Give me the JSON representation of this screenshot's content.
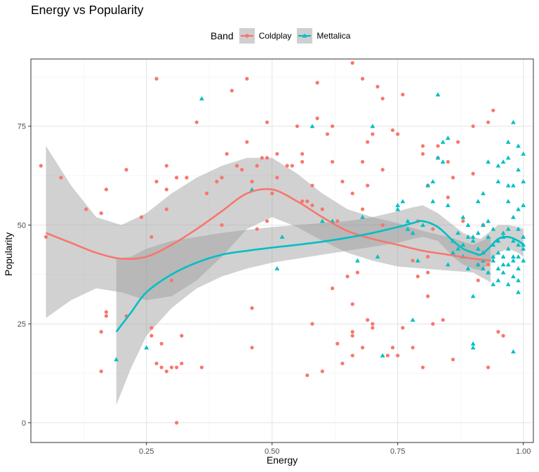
{
  "chart_data": {
    "type": "scatter",
    "title": "Energy vs Popularity",
    "xlabel": "Energy",
    "ylabel": "Popularity",
    "xlim": [
      0.02,
      1.02
    ],
    "ylim": [
      -5,
      92
    ],
    "x_ticks": [
      0.25,
      0.5,
      0.75,
      1.0
    ],
    "x_tick_labels": [
      "0.25",
      "0.50",
      "0.75",
      "1.00"
    ],
    "y_ticks": [
      0,
      25,
      50,
      75
    ],
    "y_tick_labels": [
      "0",
      "25",
      "50",
      "75"
    ],
    "grid": true,
    "legend": {
      "title": "Band",
      "position": "top",
      "items": [
        "Coldplay",
        "Mettalica"
      ]
    },
    "colors": {
      "Coldplay": "#F8766D",
      "Mettalica": "#00BFC4"
    },
    "series": [
      {
        "name": "Coldplay",
        "marker": "circle",
        "points": [
          [
            0.04,
            65
          ],
          [
            0.05,
            47
          ],
          [
            0.08,
            62
          ],
          [
            0.13,
            54
          ],
          [
            0.16,
            53
          ],
          [
            0.16,
            23
          ],
          [
            0.17,
            59
          ],
          [
            0.17,
            28
          ],
          [
            0.17,
            27
          ],
          [
            0.16,
            13
          ],
          [
            0.21,
            64
          ],
          [
            0.21,
            27
          ],
          [
            0.24,
            52
          ],
          [
            0.26,
            47
          ],
          [
            0.26,
            24
          ],
          [
            0.26,
            22
          ],
          [
            0.27,
            61
          ],
          [
            0.27,
            87
          ],
          [
            0.27,
            15
          ],
          [
            0.28,
            14
          ],
          [
            0.28,
            20
          ],
          [
            0.29,
            13
          ],
          [
            0.29,
            59
          ],
          [
            0.29,
            65
          ],
          [
            0.29,
            54
          ],
          [
            0.3,
            14
          ],
          [
            0.3,
            36
          ],
          [
            0.31,
            14
          ],
          [
            0.31,
            62
          ],
          [
            0.31,
            0
          ],
          [
            0.32,
            22
          ],
          [
            0.32,
            15
          ],
          [
            0.33,
            62
          ],
          [
            0.35,
            76
          ],
          [
            0.36,
            14
          ],
          [
            0.37,
            58
          ],
          [
            0.39,
            61
          ],
          [
            0.4,
            62
          ],
          [
            0.4,
            50
          ],
          [
            0.41,
            68
          ],
          [
            0.42,
            84
          ],
          [
            0.43,
            65
          ],
          [
            0.44,
            64
          ],
          [
            0.45,
            87
          ],
          [
            0.45,
            71
          ],
          [
            0.46,
            19
          ],
          [
            0.46,
            29
          ],
          [
            0.46,
            61
          ],
          [
            0.47,
            65
          ],
          [
            0.47,
            49
          ],
          [
            0.48,
            67
          ],
          [
            0.49,
            67
          ],
          [
            0.49,
            76
          ],
          [
            0.49,
            51
          ],
          [
            0.5,
            58
          ],
          [
            0.51,
            68
          ],
          [
            0.51,
            62
          ],
          [
            0.53,
            65
          ],
          [
            0.54,
            65
          ],
          [
            0.55,
            75
          ],
          [
            0.56,
            68
          ],
          [
            0.56,
            66
          ],
          [
            0.56,
            56
          ],
          [
            0.57,
            12
          ],
          [
            0.57,
            56
          ],
          [
            0.58,
            60
          ],
          [
            0.58,
            55
          ],
          [
            0.58,
            25
          ],
          [
            0.59,
            86
          ],
          [
            0.59,
            77
          ],
          [
            0.6,
            54
          ],
          [
            0.6,
            13
          ],
          [
            0.61,
            73
          ],
          [
            0.62,
            75
          ],
          [
            0.62,
            66
          ],
          [
            0.62,
            34
          ],
          [
            0.63,
            51
          ],
          [
            0.63,
            20
          ],
          [
            0.64,
            61
          ],
          [
            0.64,
            15
          ],
          [
            0.65,
            37
          ],
          [
            0.66,
            91
          ],
          [
            0.66,
            58
          ],
          [
            0.66,
            22
          ],
          [
            0.66,
            23
          ],
          [
            0.66,
            17
          ],
          [
            0.67,
            38
          ],
          [
            0.68,
            87
          ],
          [
            0.68,
            66
          ],
          [
            0.68,
            19
          ],
          [
            0.68,
            54
          ],
          [
            0.69,
            71
          ],
          [
            0.69,
            60
          ],
          [
            0.69,
            26
          ],
          [
            0.7,
            25
          ],
          [
            0.7,
            24
          ],
          [
            0.7,
            73
          ],
          [
            0.71,
            85
          ],
          [
            0.72,
            82
          ],
          [
            0.72,
            50
          ],
          [
            0.72,
            64
          ],
          [
            0.73,
            17
          ],
          [
            0.74,
            74
          ],
          [
            0.75,
            73
          ],
          [
            0.75,
            17
          ],
          [
            0.76,
            83
          ],
          [
            0.76,
            24
          ],
          [
            0.78,
            41
          ],
          [
            0.78,
            19
          ],
          [
            0.79,
            51
          ],
          [
            0.79,
            37
          ],
          [
            0.8,
            14
          ],
          [
            0.8,
            70
          ],
          [
            0.8,
            68
          ],
          [
            0.81,
            60
          ],
          [
            0.81,
            42
          ],
          [
            0.81,
            32
          ],
          [
            0.81,
            38
          ],
          [
            0.82,
            25
          ],
          [
            0.82,
            49
          ],
          [
            0.83,
            67
          ],
          [
            0.83,
            70
          ],
          [
            0.84,
            26
          ],
          [
            0.85,
            66
          ],
          [
            0.85,
            57
          ],
          [
            0.86,
            62
          ],
          [
            0.86,
            16
          ],
          [
            0.87,
            71
          ],
          [
            0.88,
            51
          ],
          [
            0.9,
            63
          ],
          [
            0.91,
            36
          ],
          [
            0.91,
            40
          ],
          [
            0.92,
            50
          ],
          [
            0.93,
            76
          ],
          [
            0.93,
            14
          ],
          [
            0.94,
            79
          ],
          [
            0.95,
            23
          ],
          [
            0.96,
            22
          ],
          [
            0.9,
            75
          ],
          [
            0.93,
            40
          ],
          [
            0.74,
            19
          ],
          [
            0.66,
            30
          ]
        ]
      },
      {
        "name": "Mettalica",
        "marker": "triangle",
        "points": [
          [
            0.19,
            16
          ],
          [
            0.25,
            19
          ],
          [
            0.36,
            82
          ],
          [
            0.46,
            59
          ],
          [
            0.51,
            39
          ],
          [
            0.52,
            47
          ],
          [
            0.58,
            75
          ],
          [
            0.6,
            51
          ],
          [
            0.62,
            51
          ],
          [
            0.67,
            41
          ],
          [
            0.68,
            52
          ],
          [
            0.7,
            75
          ],
          [
            0.71,
            42
          ],
          [
            0.72,
            17
          ],
          [
            0.75,
            54
          ],
          [
            0.75,
            55
          ],
          [
            0.76,
            56
          ],
          [
            0.77,
            51
          ],
          [
            0.77,
            49
          ],
          [
            0.78,
            48
          ],
          [
            0.78,
            26
          ],
          [
            0.79,
            41
          ],
          [
            0.8,
            50
          ],
          [
            0.81,
            60
          ],
          [
            0.82,
            61
          ],
          [
            0.82,
            56
          ],
          [
            0.83,
            67
          ],
          [
            0.83,
            83
          ],
          [
            0.84,
            66
          ],
          [
            0.84,
            71
          ],
          [
            0.85,
            40
          ],
          [
            0.85,
            72
          ],
          [
            0.86,
            43
          ],
          [
            0.86,
            46
          ],
          [
            0.87,
            44
          ],
          [
            0.87,
            48
          ],
          [
            0.88,
            45
          ],
          [
            0.88,
            42
          ],
          [
            0.89,
            47
          ],
          [
            0.89,
            39
          ],
          [
            0.9,
            32
          ],
          [
            0.9,
            20
          ],
          [
            0.9,
            19
          ],
          [
            0.91,
            56
          ],
          [
            0.91,
            48
          ],
          [
            0.91,
            40
          ],
          [
            0.92,
            58
          ],
          [
            0.92,
            43
          ],
          [
            0.92,
            50
          ],
          [
            0.93,
            51
          ],
          [
            0.93,
            38
          ],
          [
            0.93,
            66
          ],
          [
            0.94,
            45
          ],
          [
            0.94,
            35
          ],
          [
            0.94,
            41
          ],
          [
            0.95,
            39
          ],
          [
            0.95,
            46
          ],
          [
            0.95,
            43
          ],
          [
            0.95,
            61
          ],
          [
            0.96,
            66
          ],
          [
            0.96,
            38
          ],
          [
            0.96,
            47
          ],
          [
            0.96,
            42
          ],
          [
            0.97,
            49
          ],
          [
            0.97,
            35
          ],
          [
            0.97,
            40
          ],
          [
            0.97,
            44
          ],
          [
            0.97,
            56
          ],
          [
            0.97,
            67
          ],
          [
            0.98,
            76
          ],
          [
            0.98,
            18
          ],
          [
            0.98,
            46
          ],
          [
            0.98,
            37
          ],
          [
            0.98,
            52
          ],
          [
            0.98,
            42
          ],
          [
            0.99,
            70
          ],
          [
            0.99,
            64
          ],
          [
            0.99,
            45
          ],
          [
            0.99,
            49
          ],
          [
            0.99,
            36
          ],
          [
            0.99,
            33
          ],
          [
            0.99,
            39
          ],
          [
            1.0,
            68
          ],
          [
            1.0,
            61
          ],
          [
            1.0,
            44
          ],
          [
            1.0,
            47
          ],
          [
            1.0,
            41
          ],
          [
            1.0,
            55
          ],
          [
            0.99,
            54
          ],
          [
            0.98,
            41
          ],
          [
            0.97,
            60
          ],
          [
            0.96,
            48
          ],
          [
            0.95,
            65
          ],
          [
            0.94,
            42
          ],
          [
            0.93,
            47
          ],
          [
            0.92,
            41
          ],
          [
            0.91,
            44
          ],
          [
            0.9,
            46
          ],
          [
            0.99,
            42
          ],
          [
            0.98,
            60
          ],
          [
            0.97,
            71
          ],
          [
            1.0,
            45
          ],
          [
            0.96,
            40
          ],
          [
            0.95,
            36
          ],
          [
            0.94,
            49
          ],
          [
            0.92,
            39
          ],
          [
            0.9,
            47
          ],
          [
            0.89,
            50
          ],
          [
            0.85,
            55
          ],
          [
            0.88,
            52
          ]
        ]
      }
    ],
    "smooth": [
      {
        "name": "Coldplay",
        "x": [
          0.05,
          0.1,
          0.15,
          0.2,
          0.25,
          0.3,
          0.35,
          0.4,
          0.45,
          0.5,
          0.55,
          0.6,
          0.65,
          0.7,
          0.75,
          0.8,
          0.85,
          0.9,
          0.935
        ],
        "y": [
          48,
          45.5,
          43,
          41.5,
          42,
          45,
          49,
          53.5,
          58,
          59,
          56,
          52,
          48.5,
          46.5,
          45,
          43.5,
          42.5,
          41.5,
          41
        ],
        "lower": [
          26.5,
          31,
          34,
          33,
          31,
          32,
          36,
          42,
          49,
          52,
          49.5,
          46,
          43,
          41,
          39.5,
          39,
          38.5,
          38,
          35.5
        ],
        "upper": [
          70,
          60,
          52,
          50,
          53,
          58,
          62,
          65,
          67,
          67,
          63,
          58,
          54,
          52,
          50.5,
          48.5,
          47,
          45,
          47
        ]
      },
      {
        "name": "Mettalica",
        "x": [
          0.19,
          0.22,
          0.25,
          0.3,
          0.35,
          0.4,
          0.45,
          0.5,
          0.55,
          0.6,
          0.65,
          0.7,
          0.75,
          0.78,
          0.8,
          0.83,
          0.86,
          0.88,
          0.9,
          0.915,
          0.93,
          0.95,
          0.97,
          0.99,
          1.0
        ],
        "y": [
          23,
          28,
          33,
          37.5,
          40.5,
          42.5,
          43.5,
          44.3,
          45,
          45.8,
          46.8,
          48,
          49.5,
          50.5,
          51,
          49.5,
          46,
          44,
          43,
          42.5,
          44,
          46.5,
          47,
          46,
          45
        ],
        "lower": [
          4.5,
          14,
          22,
          29,
          34,
          37,
          39,
          40.5,
          41.5,
          42.5,
          43.5,
          44.5,
          45.5,
          46.5,
          47,
          46,
          42,
          40,
          39,
          38.5,
          40,
          43,
          44,
          43,
          42
        ],
        "upper": [
          41.5,
          42,
          44,
          46,
          47,
          48,
          48.8,
          49.5,
          50,
          50.5,
          51,
          52,
          53.5,
          54.5,
          55,
          53,
          50,
          48,
          47,
          46.5,
          48,
          50,
          50,
          49.5,
          49
        ]
      }
    ]
  }
}
